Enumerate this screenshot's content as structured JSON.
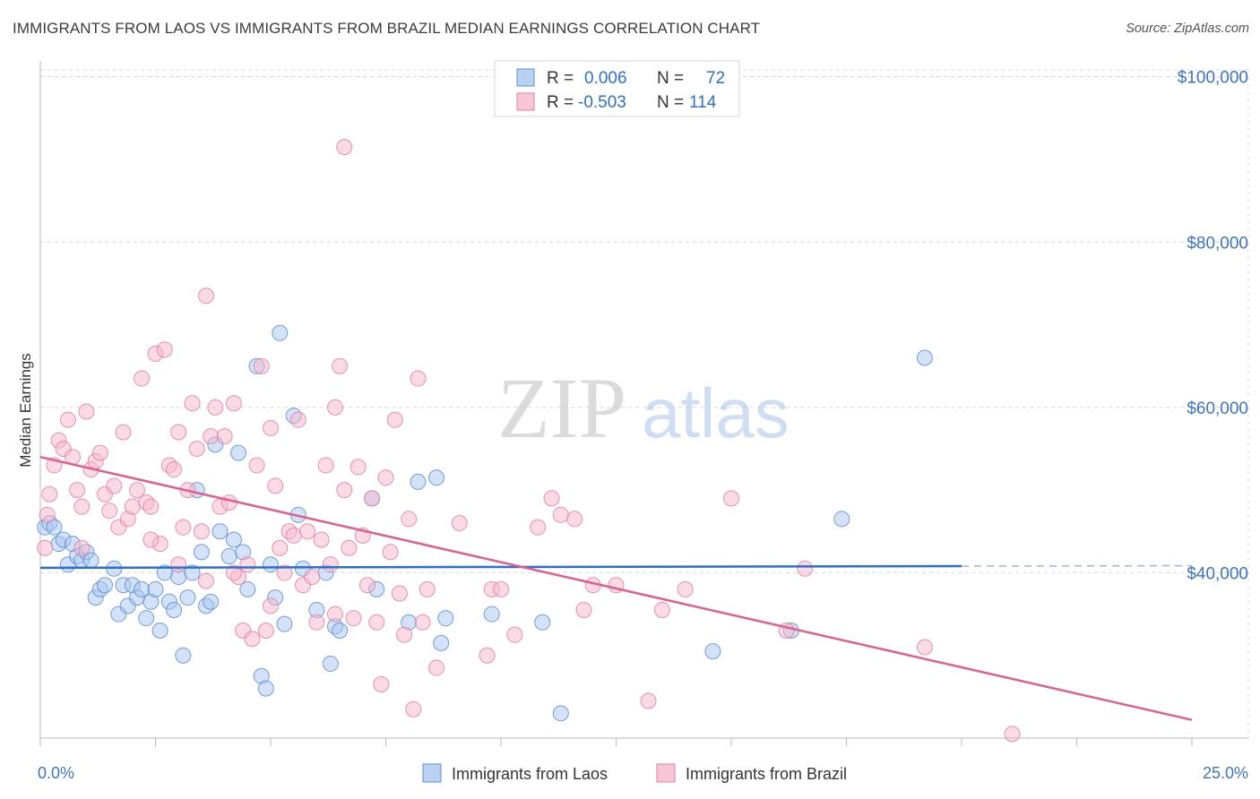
{
  "header": {
    "title": "IMMIGRANTS FROM LAOS VS IMMIGRANTS FROM BRAZIL MEDIAN EARNINGS CORRELATION CHART",
    "source": "Source: ZipAtlas.com"
  },
  "watermark": {
    "zip": "ZIP",
    "atlas": "atlas"
  },
  "legend": {
    "rows": [
      {
        "r_label": "R =",
        "r_value": "0.006",
        "n_label": "N =",
        "n_value": "72"
      },
      {
        "r_label": "R =",
        "r_value": "-0.503",
        "n_label": "N =",
        "n_value": "114"
      }
    ]
  },
  "bottom_legend": {
    "laos": "Immigrants from Laos",
    "brazil": "Immigrants from Brazil"
  },
  "colors": {
    "laos_fill": "#a9c6ef",
    "laos_stroke": "#5b8fd6",
    "laos_line": "#2b6fcc",
    "brazil_fill": "#f5b8cc",
    "brazil_stroke": "#e77fa0",
    "brazil_line": "#e0608d",
    "grid": "#d8d8d8",
    "tick_label": "#3b73c8"
  },
  "chart_data": {
    "type": "scatter",
    "title": "IMMIGRANTS FROM LAOS VS IMMIGRANTS FROM BRAZIL MEDIAN EARNINGS CORRELATION CHART",
    "xlabel": "",
    "ylabel": "Median Earnings",
    "xlim": [
      0,
      25
    ],
    "ylim": [
      20000,
      103000
    ],
    "x_tick_labels": [
      "0.0%",
      "25.0%"
    ],
    "y_ticks": [
      {
        "value": 40000,
        "label": "$40,000"
      },
      {
        "value": 60000,
        "label": "$60,000"
      },
      {
        "value": 80000,
        "label": "$80,000"
      },
      {
        "value": 100000,
        "label": "$100,000"
      }
    ],
    "grid": true,
    "legend_position": "top-center",
    "series": [
      {
        "name": "Immigrants from Laos",
        "r": 0.006,
        "n": 72,
        "trend": {
          "x": [
            0,
            20
          ],
          "y": [
            40600,
            40800
          ],
          "dashed_extension_to_x": 25
        },
        "points": [
          [
            0.1,
            45500
          ],
          [
            0.2,
            46000
          ],
          [
            0.3,
            45500
          ],
          [
            0.4,
            43500
          ],
          [
            0.5,
            44000
          ],
          [
            0.6,
            41000
          ],
          [
            0.7,
            43500
          ],
          [
            0.8,
            42000
          ],
          [
            0.9,
            41500
          ],
          [
            1.0,
            42500
          ],
          [
            1.1,
            41500
          ],
          [
            1.2,
            37000
          ],
          [
            1.3,
            38000
          ],
          [
            1.4,
            38500
          ],
          [
            1.6,
            40500
          ],
          [
            1.7,
            35000
          ],
          [
            1.8,
            38500
          ],
          [
            1.9,
            36000
          ],
          [
            2.0,
            38500
          ],
          [
            2.1,
            37000
          ],
          [
            2.2,
            38000
          ],
          [
            2.3,
            34500
          ],
          [
            2.4,
            36500
          ],
          [
            2.5,
            38000
          ],
          [
            2.6,
            33000
          ],
          [
            2.7,
            40000
          ],
          [
            2.8,
            36500
          ],
          [
            2.9,
            35500
          ],
          [
            3.0,
            39500
          ],
          [
            3.1,
            30000
          ],
          [
            3.2,
            37000
          ],
          [
            3.3,
            40000
          ],
          [
            3.4,
            50000
          ],
          [
            3.5,
            42500
          ],
          [
            3.6,
            36000
          ],
          [
            3.7,
            36500
          ],
          [
            3.8,
            55500
          ],
          [
            3.9,
            45000
          ],
          [
            4.1,
            42000
          ],
          [
            4.3,
            54500
          ],
          [
            4.2,
            44000
          ],
          [
            4.4,
            42500
          ],
          [
            4.5,
            38000
          ],
          [
            4.7,
            65000
          ],
          [
            4.8,
            27500
          ],
          [
            4.9,
            26000
          ],
          [
            5.0,
            41000
          ],
          [
            5.1,
            37000
          ],
          [
            5.2,
            69000
          ],
          [
            5.3,
            33800
          ],
          [
            5.5,
            59000
          ],
          [
            5.6,
            47000
          ],
          [
            5.7,
            40500
          ],
          [
            6.0,
            35500
          ],
          [
            6.2,
            40000
          ],
          [
            6.3,
            29000
          ],
          [
            6.4,
            33500
          ],
          [
            6.5,
            33000
          ],
          [
            7.2,
            49000
          ],
          [
            7.3,
            38000
          ],
          [
            8.0,
            34000
          ],
          [
            8.2,
            51000
          ],
          [
            8.6,
            51500
          ],
          [
            8.7,
            31500
          ],
          [
            8.8,
            34500
          ],
          [
            9.8,
            35000
          ],
          [
            10.9,
            34000
          ],
          [
            11.3,
            23000
          ],
          [
            14.6,
            30500
          ],
          [
            16.3,
            33000
          ],
          [
            17.4,
            46500
          ],
          [
            19.2,
            66000
          ]
        ]
      },
      {
        "name": "Immigrants from Brazil",
        "r": -0.503,
        "n": 114,
        "trend": {
          "x": [
            0,
            25
          ],
          "y": [
            54000,
            22200
          ]
        },
        "points": [
          [
            0.1,
            43000
          ],
          [
            0.15,
            47000
          ],
          [
            0.2,
            49500
          ],
          [
            0.3,
            53000
          ],
          [
            0.4,
            56000
          ],
          [
            0.5,
            55000
          ],
          [
            0.6,
            58500
          ],
          [
            0.7,
            54000
          ],
          [
            0.8,
            50000
          ],
          [
            0.9,
            48000
          ],
          [
            1.0,
            59500
          ],
          [
            1.1,
            52500
          ],
          [
            1.2,
            53500
          ],
          [
            1.3,
            54500
          ],
          [
            1.4,
            49500
          ],
          [
            1.5,
            47500
          ],
          [
            1.6,
            50500
          ],
          [
            1.7,
            45500
          ],
          [
            1.8,
            57000
          ],
          [
            1.9,
            46500
          ],
          [
            2.0,
            48000
          ],
          [
            2.1,
            50000
          ],
          [
            2.2,
            63500
          ],
          [
            2.3,
            48500
          ],
          [
            2.4,
            48000
          ],
          [
            2.5,
            66500
          ],
          [
            2.6,
            43500
          ],
          [
            2.7,
            67000
          ],
          [
            2.8,
            53000
          ],
          [
            2.9,
            52500
          ],
          [
            3.0,
            57000
          ],
          [
            3.1,
            45500
          ],
          [
            3.2,
            50000
          ],
          [
            3.3,
            60500
          ],
          [
            3.4,
            55000
          ],
          [
            3.5,
            45000
          ],
          [
            3.6,
            73500
          ],
          [
            3.7,
            56500
          ],
          [
            3.8,
            60000
          ],
          [
            3.9,
            48000
          ],
          [
            4.0,
            56500
          ],
          [
            4.1,
            48500
          ],
          [
            4.2,
            60500
          ],
          [
            4.3,
            39500
          ],
          [
            4.4,
            33000
          ],
          [
            4.5,
            41000
          ],
          [
            4.6,
            32000
          ],
          [
            4.7,
            53000
          ],
          [
            4.8,
            65000
          ],
          [
            4.9,
            33000
          ],
          [
            5.0,
            57500
          ],
          [
            5.1,
            50500
          ],
          [
            5.2,
            43000
          ],
          [
            5.3,
            40000
          ],
          [
            5.4,
            45000
          ],
          [
            5.5,
            44500
          ],
          [
            5.6,
            58500
          ],
          [
            5.7,
            38500
          ],
          [
            5.8,
            45000
          ],
          [
            5.9,
            39500
          ],
          [
            6.0,
            34000
          ],
          [
            6.1,
            44000
          ],
          [
            6.2,
            53000
          ],
          [
            6.3,
            41000
          ],
          [
            6.4,
            35000
          ],
          [
            6.5,
            65000
          ],
          [
            6.6,
            50000
          ],
          [
            6.7,
            43000
          ],
          [
            6.8,
            34500
          ],
          [
            6.9,
            52800
          ],
          [
            7.0,
            44500
          ],
          [
            7.1,
            38500
          ],
          [
            7.2,
            49000
          ],
          [
            7.3,
            34000
          ],
          [
            7.4,
            26500
          ],
          [
            7.5,
            51500
          ],
          [
            7.6,
            42500
          ],
          [
            7.7,
            58500
          ],
          [
            7.8,
            37500
          ],
          [
            7.9,
            32500
          ],
          [
            8.0,
            46500
          ],
          [
            8.1,
            23500
          ],
          [
            8.2,
            63500
          ],
          [
            8.3,
            34000
          ],
          [
            8.4,
            38000
          ],
          [
            8.6,
            28500
          ],
          [
            9.1,
            46000
          ],
          [
            9.7,
            30000
          ],
          [
            9.8,
            38000
          ],
          [
            10.0,
            38000
          ],
          [
            10.3,
            32500
          ],
          [
            10.8,
            45500
          ],
          [
            11.1,
            49000
          ],
          [
            11.3,
            47000
          ],
          [
            11.6,
            46500
          ],
          [
            11.8,
            35500
          ],
          [
            12.0,
            38500
          ],
          [
            12.5,
            38500
          ],
          [
            13.2,
            24500
          ],
          [
            13.5,
            35500
          ],
          [
            14.0,
            38000
          ],
          [
            15.0,
            49000
          ],
          [
            16.2,
            33000
          ],
          [
            16.6,
            40500
          ],
          [
            19.2,
            31000
          ],
          [
            21.1,
            20500
          ],
          [
            6.6,
            91500
          ],
          [
            6.4,
            60000
          ],
          [
            4.2,
            40000
          ],
          [
            3.0,
            41000
          ],
          [
            2.4,
            44000
          ],
          [
            0.9,
            43000
          ],
          [
            5.0,
            36000
          ],
          [
            3.6,
            39000
          ]
        ]
      }
    ]
  }
}
